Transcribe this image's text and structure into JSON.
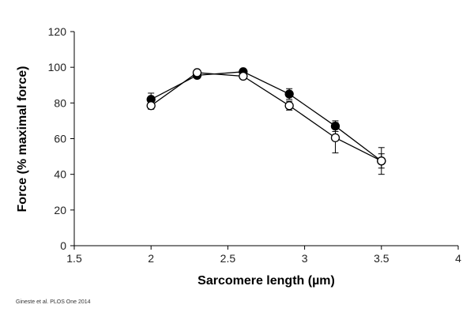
{
  "chart_data": {
    "type": "scatter",
    "title": "",
    "xlabel": "Sarcomere length (µm)",
    "ylabel": "Force (% maximal force)",
    "xlim": [
      1.5,
      4
    ],
    "ylim": [
      0,
      120
    ],
    "xticks": [
      1.5,
      2,
      2.5,
      3,
      3.5,
      4
    ],
    "xtick_labels": [
      "1.5",
      "2",
      "2.5",
      "3",
      "3.5",
      "4"
    ],
    "yticks": [
      0,
      20,
      40,
      60,
      80,
      100,
      120
    ],
    "ytick_labels": [
      "0",
      "20",
      "40",
      "60",
      "80",
      "100",
      "120"
    ],
    "grid": false,
    "legend": "none",
    "series": [
      {
        "marker": "filled-circle",
        "color": "#000000",
        "x": [
          2.0,
          2.3,
          2.6,
          2.9,
          3.2,
          3.5
        ],
        "y": [
          82,
          95.5,
          97.5,
          85,
          67,
          47.5
        ],
        "yerr": [
          3.5,
          1.5,
          1.5,
          3,
          3,
          4
        ]
      },
      {
        "marker": "open-circle",
        "color": "#000000",
        "x": [
          2.0,
          2.3,
          2.6,
          2.9,
          3.2,
          3.5
        ],
        "y": [
          78.5,
          97,
          95,
          78.5,
          60.5,
          47.5
        ],
        "yerr": [
          2,
          1.5,
          1.5,
          2.5,
          8.5,
          7.5
        ]
      }
    ]
  },
  "source_note": "Gineste et al. PLOS One 2014"
}
